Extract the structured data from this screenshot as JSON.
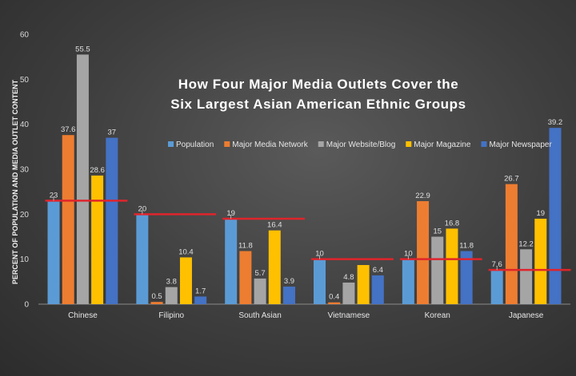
{
  "chart_data": {
    "type": "bar",
    "title_line1": "How Four Major Media Outlets Cover the",
    "title_line2": "Six Largest Asian American Ethnic Groups",
    "ylabel": "PERCENT OF POPULATION AND MEDIA OUTLET CONTENT",
    "xlabel": "",
    "ylim": [
      0,
      60
    ],
    "yticks": [
      "0",
      "10",
      "20",
      "30",
      "40",
      "50",
      "60"
    ],
    "grid": false,
    "legend_position": "inside-top",
    "categories": [
      "Chinese",
      "Filipino",
      "South Asian",
      "Vietnamese",
      "Korean",
      "Japanese"
    ],
    "series": [
      {
        "name": "Population",
        "color": "#5b9bd5",
        "values": [
          23,
          20,
          19,
          10,
          10,
          7.6
        ],
        "labels": [
          "23",
          "20",
          "19",
          "10",
          "10",
          "7.6"
        ]
      },
      {
        "name": "Major Media Network",
        "color": "#ed7d31",
        "values": [
          37.6,
          0.5,
          11.8,
          0.4,
          22.9,
          26.7
        ],
        "labels": [
          "37.6",
          "0.5",
          "11.8",
          "0.4",
          "22.9",
          "26.7"
        ]
      },
      {
        "name": "Major Website/Blog",
        "color": "#a5a5a5",
        "values": [
          55.5,
          3.8,
          5.7,
          4.8,
          15,
          12.2
        ],
        "labels": [
          "55.5",
          "3.8",
          "5.7",
          "4.8",
          "15",
          "12.2"
        ]
      },
      {
        "name": "Major Magazine",
        "color": "#ffc000",
        "values": [
          28.6,
          10.4,
          16.4,
          8.7,
          16.8,
          19
        ],
        "labels": [
          "28.6",
          "10.4",
          "16.4",
          "",
          "16.8",
          "19"
        ]
      },
      {
        "name": "Major Newspaper",
        "color": "#4472c4",
        "values": [
          37,
          1.7,
          3.9,
          6.4,
          11.8,
          39.2
        ],
        "labels": [
          "37",
          "1.7",
          "3.9",
          "6.4",
          "11.8",
          "39.2"
        ]
      }
    ],
    "reference_line_color": "#e0242b"
  }
}
